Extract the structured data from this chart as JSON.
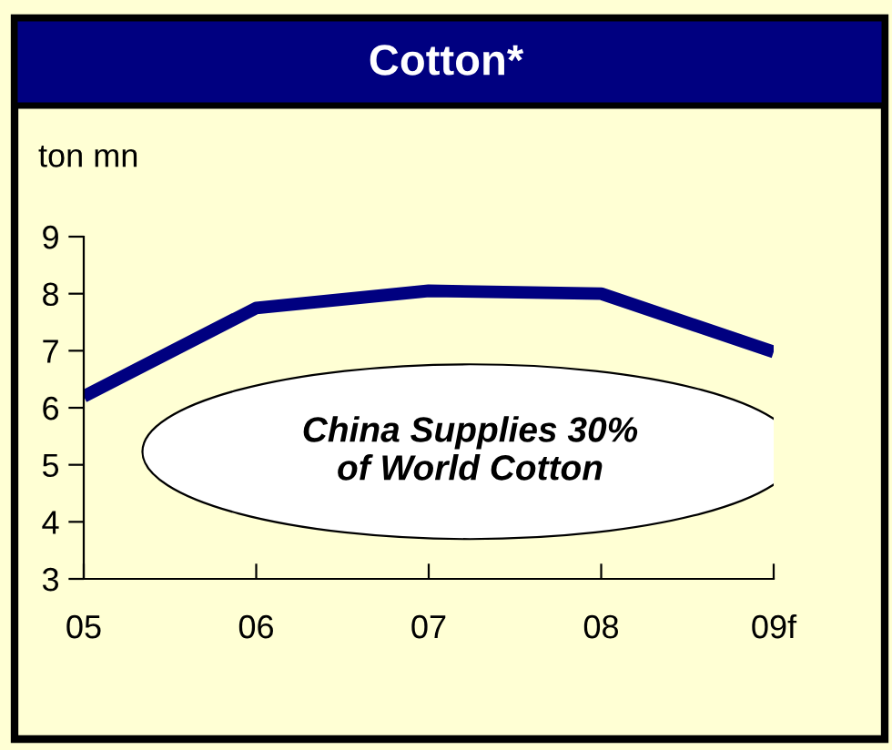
{
  "chart_data": {
    "type": "line",
    "title": "Cotton*",
    "ylabel": "ton mn",
    "categories": [
      "05",
      "06",
      "07",
      "08",
      "09f"
    ],
    "series": [
      {
        "color": "#000080",
        "values": [
          6.2,
          7.75,
          8.05,
          8.0,
          6.98
        ]
      }
    ],
    "ylim": [
      3,
      9
    ],
    "yticks": [
      3,
      4,
      5,
      6,
      7,
      8,
      9
    ],
    "grid": false,
    "legend": false,
    "marker": "none",
    "line_style": "solid",
    "annotations": [
      "China Supplies 30%\nof World Cotton"
    ]
  }
}
